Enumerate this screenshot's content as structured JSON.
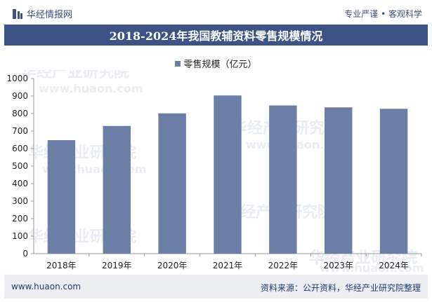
{
  "header": {
    "brand": "华经情报网",
    "slogan": "专业严谨 • 客观科学"
  },
  "watermark": {
    "text": "华经产业研究院",
    "sub": "www.huaon.com"
  },
  "colors": {
    "bar": "#6b7fa6",
    "title_band": "#3d5285",
    "footer_bg": "#eceef3",
    "brand_text": "#3a4d7a"
  },
  "footer": {
    "url": "www.huaon.com",
    "source": "资料来源：公开资料，华经产业研究院整理"
  },
  "chart_data": {
    "type": "bar",
    "title": "2018-2024年我国教辅资料零售规模情况",
    "categories": [
      "2018年",
      "2019年",
      "2020年",
      "2021年",
      "2022年",
      "2023年",
      "2024年"
    ],
    "series": [
      {
        "name": "零售规模（亿元）",
        "values": [
          648,
          729,
          801,
          903,
          846,
          835,
          827
        ]
      }
    ],
    "xlabel": "",
    "ylabel": "",
    "ylim": [
      0,
      1000
    ],
    "yticks": [
      0,
      100,
      200,
      300,
      400,
      500,
      600,
      700,
      800,
      900,
      1000
    ],
    "grid": false,
    "legend": "top-center"
  }
}
